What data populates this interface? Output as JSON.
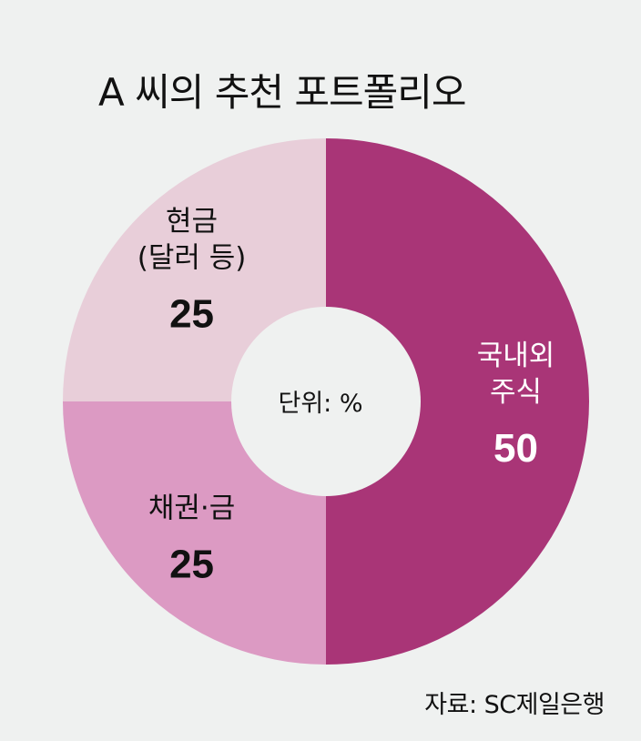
{
  "title": "A 씨의 추천 포트폴리오",
  "source": "자료: SC제일은행",
  "chart_data": {
    "type": "pie",
    "donut": true,
    "center_label": "단위: %",
    "slices": [
      {
        "label_lines": [
          "국내외",
          "주식"
        ],
        "value": 50,
        "value_label": "50",
        "color": "#a93577",
        "text_color": "#ffffff"
      },
      {
        "label_lines": [
          "채권·금"
        ],
        "value": 25,
        "value_label": "25",
        "color": "#dc9ac3",
        "text_color": "#111111"
      },
      {
        "label_lines": [
          "현금",
          "(달러 등)"
        ],
        "value": 25,
        "value_label": "25",
        "color": "#e8ced9",
        "text_color": "#111111"
      }
    ],
    "center_color": "#eff1f0"
  }
}
